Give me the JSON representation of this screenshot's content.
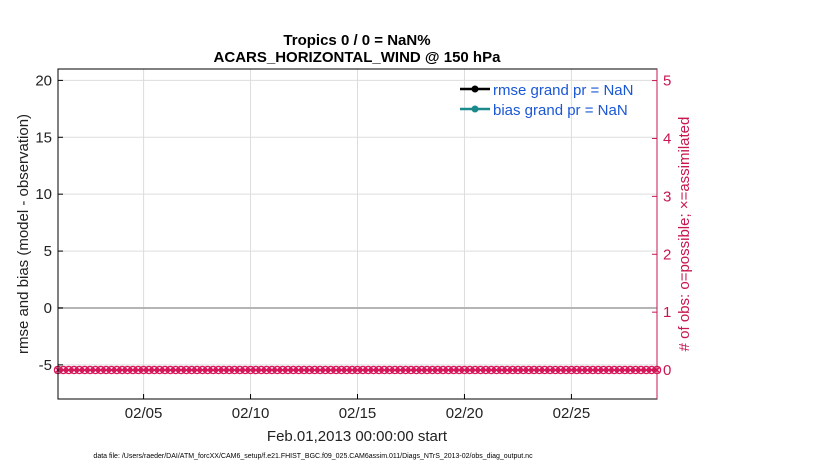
{
  "chart_data": {
    "type": "line",
    "title_lines": [
      "Tropics 0 / 0 = NaN%",
      "ACARS_HORIZONTAL_WIND @ 150 hPa"
    ],
    "xlabel": "Feb.01,2013 00:00:00 start",
    "ylabel_left": "rmse and bias (model - observation)",
    "ylabel_right": "# of obs: o=possible; ×=assimilated",
    "x_range_days": [
      1,
      29
    ],
    "x_ticks": [
      {
        "day": 5,
        "label": "02/05"
      },
      {
        "day": 10,
        "label": "02/10"
      },
      {
        "day": 15,
        "label": "02/15"
      },
      {
        "day": 20,
        "label": "02/20"
      },
      {
        "day": 25,
        "label": "02/25"
      }
    ],
    "ylim_left": [
      -8,
      21
    ],
    "yticks_left": [
      {
        "value": 20,
        "label": "20"
      },
      {
        "value": 15,
        "label": "15"
      },
      {
        "value": 10,
        "label": "10"
      },
      {
        "value": 5,
        "label": "5"
      },
      {
        "value": 0,
        "label": "0"
      },
      {
        "value": -5,
        "label": "-5"
      }
    ],
    "ylim_right": [
      -0.5,
      5.2
    ],
    "yticks_right": [
      {
        "value": 5,
        "label": "5"
      },
      {
        "value": 4,
        "label": "4"
      },
      {
        "value": 3,
        "label": "3"
      },
      {
        "value": 2,
        "label": "2"
      },
      {
        "value": 1,
        "label": "1"
      },
      {
        "value": 0,
        "label": "0"
      }
    ],
    "zero_line_left": 0,
    "obs_marker_value_right": 0,
    "obs_count_points": 113,
    "grid": true,
    "legend_position": "top-right",
    "series": [
      {
        "name": "rmse grand pr = NaN",
        "color": "#000000",
        "values": []
      },
      {
        "name": "bias grand pr = NaN",
        "color": "#1a8a8a",
        "values": []
      }
    ],
    "colors": {
      "obs_markers": "#d6175a",
      "right_axis": "#c8174f",
      "legend_text": "#1a57d6",
      "grid": "#dddddd",
      "zero_line": "#b5b5b5"
    },
    "footnote": "data file: /Users/raeder/DAI/ATM_forcXX/CAM6_setup/f.e21.FHIST_BGC.f09_025.CAM6assim.011/Diags_NTrS_2013-02/obs_diag_output.nc"
  }
}
